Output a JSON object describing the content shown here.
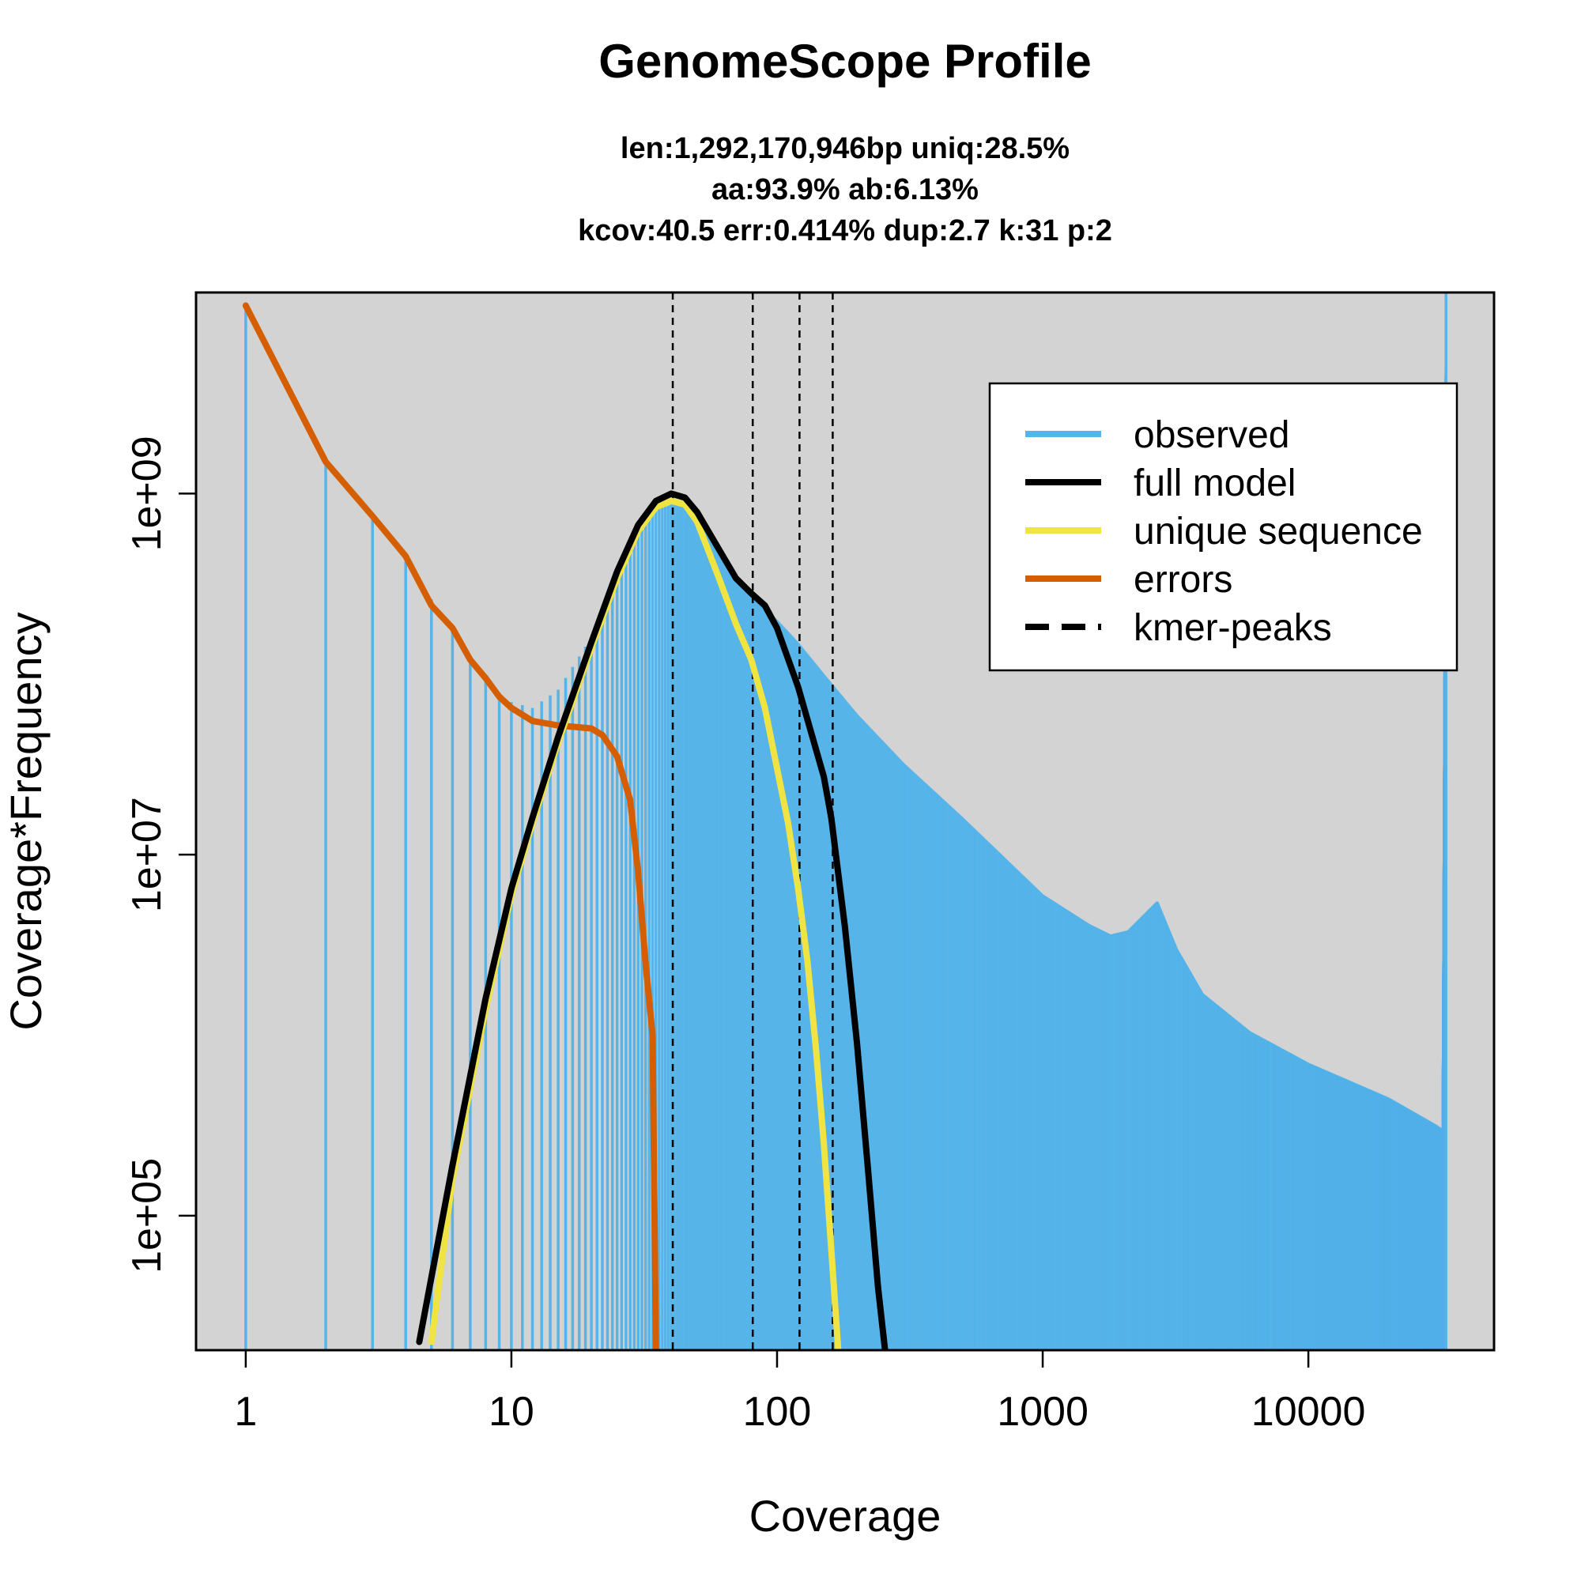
{
  "chart_data": {
    "type": "line",
    "title": "GenomeScope Profile",
    "subtitle_lines": [
      "len:1,292,170,946bp uniq:28.5%",
      "aa:93.9% ab:6.13%",
      "kcov:40.5 err:0.414%  dup:2.7  k:31 p:2"
    ],
    "xlabel": "Coverage",
    "ylabel": "Coverage*Frequency",
    "x_scale": "log",
    "y_scale": "log",
    "xlim": [
      0.65,
      50000
    ],
    "ylim": [
      18000,
      13000000000.0
    ],
    "x_ticks": [
      1,
      10,
      100,
      1000,
      10000
    ],
    "x_tick_labels": [
      "1",
      "10",
      "100",
      "1000",
      "10000"
    ],
    "y_ticks": [
      100000,
      10000000,
      1000000000
    ],
    "y_tick_labels": [
      "1e+05",
      "1e+07",
      "1e+09"
    ],
    "background_color": "#d3d3d3",
    "legend_position": "top-right",
    "legend": [
      {
        "label": "observed",
        "color": "#56b4e9",
        "style": "solid"
      },
      {
        "label": "full model",
        "color": "#000000",
        "style": "solid"
      },
      {
        "label": "unique sequence",
        "color": "#f0e442",
        "style": "solid"
      },
      {
        "label": "errors",
        "color": "#d55e00",
        "style": "solid"
      },
      {
        "label": "kmer-peaks",
        "color": "#000000",
        "style": "dashed"
      }
    ],
    "kmer_peaks": [
      40.5,
      81,
      121.5,
      162
    ],
    "series": [
      {
        "name": "observed",
        "type": "histogram",
        "color": "#56b4e9",
        "x": [
          1,
          2,
          3,
          4,
          5,
          6,
          7,
          8,
          9,
          10,
          12,
          15,
          20,
          25,
          30,
          35,
          40,
          45,
          50,
          60,
          70,
          80,
          90,
          100,
          120,
          150,
          200,
          300,
          500,
          1000,
          1500,
          1800,
          2100,
          2700,
          3200,
          4000,
          6000,
          10000,
          20000,
          30000,
          32000,
          33000
        ],
        "y": [
          11000000000.0,
          1600000000.0,
          750000000.0,
          420000000.0,
          260000000.0,
          170000000.0,
          120000000.0,
          93000000.0,
          78000000.0,
          70000000.0,
          65000000.0,
          82000000.0,
          160000000.0,
          330000000.0,
          600000000.0,
          830000000.0,
          910000000.0,
          880000000.0,
          750000000.0,
          520000000.0,
          350000000.0,
          270000000.0,
          230000000.0,
          200000000.0,
          150000000.0,
          100000000.0,
          60000000.0,
          32000000.0,
          16000000.0,
          6000000.0,
          4100000.0,
          3600000.0,
          3800000.0,
          5500000.0,
          3000000.0,
          1700000.0,
          1050000.0,
          700000.0,
          450000.0,
          320000.0,
          300000.0,
          23000000000.0
        ]
      },
      {
        "name": "full model",
        "color": "#000000",
        "x": [
          4.5,
          6,
          8,
          10,
          12,
          15,
          20,
          25,
          30,
          35,
          40,
          45,
          50,
          60,
          70,
          80,
          90,
          100,
          120,
          150,
          160,
          180,
          200,
          220,
          240,
          255
        ],
        "y": [
          20000.0,
          190000.0,
          1600000.0,
          6500000.0,
          16000000.0,
          45000000.0,
          150000000.0,
          370000000.0,
          670000000.0,
          910000000.0,
          1000000000.0,
          950000000.0,
          790000000.0,
          500000000.0,
          340000000.0,
          280000000.0,
          240000000.0,
          180000000.0,
          85000000.0,
          27000000.0,
          16000000.0,
          4000000.0,
          900000.0,
          180000.0,
          40000.0,
          18000.0
        ]
      },
      {
        "name": "unique sequence",
        "color": "#f0e442",
        "x": [
          5,
          6,
          8,
          10,
          12,
          15,
          20,
          25,
          30,
          35,
          40,
          45,
          50,
          60,
          70,
          80,
          90,
          100,
          110,
          120,
          130,
          140,
          150,
          160,
          170
        ],
        "y": [
          20000.0,
          160000.0,
          1400000.0,
          6000000.0,
          15000000.0,
          42000000.0,
          140000000.0,
          340000000.0,
          620000000.0,
          840000000.0,
          910000000.0,
          870000000.0,
          700000000.0,
          350000000.0,
          190000000.0,
          120000000.0,
          65000000.0,
          30000000.0,
          15000000.0,
          6500000.0,
          2600000.0,
          850000.0,
          250000.0,
          65000.0,
          18000.0
        ]
      },
      {
        "name": "errors",
        "color": "#d55e00",
        "x": [
          1,
          2,
          3,
          4,
          5,
          6,
          7,
          8,
          9,
          10,
          12,
          15,
          20,
          22,
          25,
          28,
          30,
          32,
          34,
          35
        ],
        "y": [
          11000000000.0,
          1500000000.0,
          750000000.0,
          450000000.0,
          240000000.0,
          180000000.0,
          120000000.0,
          95000000.0,
          75000000.0,
          65000000.0,
          55000000.0,
          52000000.0,
          50000000.0,
          46000000.0,
          35000000.0,
          20000000.0,
          8000000.0,
          2500000.0,
          1000000.0,
          18000.0
        ]
      }
    ]
  }
}
